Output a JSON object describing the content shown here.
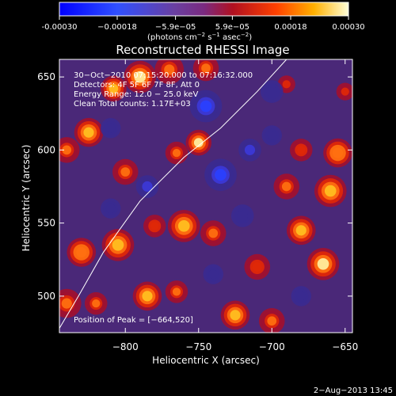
{
  "chart_data": {
    "type": "heatmap",
    "title": "Reconstructed RHESSI Image",
    "xlabel": "Heliocentric X (arcsec)",
    "ylabel": "Heliocentric Y (arcsec)",
    "xlim": [
      -845,
      -645
    ],
    "ylim": [
      475,
      662
    ],
    "x_ticks": [
      -800,
      -750,
      -700,
      -650
    ],
    "x_tick_labels": [
      "−800",
      "−750",
      "−700",
      "−650"
    ],
    "y_ticks": [
      500,
      550,
      600,
      650
    ],
    "y_tick_labels": [
      "500",
      "550",
      "600",
      "650"
    ],
    "colorbar": {
      "range": [
        -0.0003,
        0.0003
      ],
      "ticks": [
        -0.0003,
        -0.00018,
        -5.9e-05,
        5.9e-05,
        0.00018,
        0.0003
      ],
      "tick_labels": [
        "-0.00030",
        "−0.00018",
        "−5.9e−05",
        "5.9e−05",
        "0.00018",
        "0.00030"
      ],
      "units_prefix": "(photons cm",
      "units_exp1": "−2",
      "units_mid": " s",
      "units_exp2": "−1",
      "units_mid2": " asec",
      "units_exp3": "−2",
      "units_suffix": ")"
    },
    "annotations": [
      "30−Oct−2010 07:15:20.000 to 07:16:32.000",
      "Detectors: 4F 5F 6F 7F 8F, Att 0",
      "Energy Range: 12.0 − 25.0 keV",
      "Clean     Total counts: 1.17E+03"
    ],
    "peak_label": "Position of Peak = [−664,520]",
    "peak_position": [
      -664,
      520
    ],
    "limb_curve": [
      [
        -845,
        478
      ],
      [
        -832,
        500
      ],
      [
        -815,
        530
      ],
      [
        -790,
        565
      ],
      [
        -760,
        595
      ],
      [
        -735,
        615
      ],
      [
        -710,
        640
      ],
      [
        -690,
        662
      ]
    ],
    "blobs": [
      {
        "x": -790,
        "y": 650,
        "v": 1.0,
        "r": 10
      },
      {
        "x": -808,
        "y": 642,
        "v": 0.8,
        "r": 8
      },
      {
        "x": -770,
        "y": 655,
        "v": 0.7,
        "r": 9
      },
      {
        "x": -745,
        "y": 656,
        "v": 0.6,
        "r": 8
      },
      {
        "x": -825,
        "y": 612,
        "v": 0.85,
        "r": 9
      },
      {
        "x": -840,
        "y": 600,
        "v": 0.7,
        "r": 8
      },
      {
        "x": -800,
        "y": 585,
        "v": 0.6,
        "r": 8
      },
      {
        "x": -750,
        "y": 605,
        "v": 0.95,
        "r": 8
      },
      {
        "x": -765,
        "y": 598,
        "v": 0.6,
        "r": 7
      },
      {
        "x": -760,
        "y": 548,
        "v": 0.8,
        "r": 10
      },
      {
        "x": -740,
        "y": 543,
        "v": 0.7,
        "r": 8
      },
      {
        "x": -780,
        "y": 548,
        "v": 0.55,
        "r": 7
      },
      {
        "x": -805,
        "y": 535,
        "v": 0.9,
        "r": 10
      },
      {
        "x": -830,
        "y": 530,
        "v": 0.75,
        "r": 9
      },
      {
        "x": -840,
        "y": 495,
        "v": 0.7,
        "r": 9
      },
      {
        "x": -820,
        "y": 495,
        "v": 0.6,
        "r": 7
      },
      {
        "x": -785,
        "y": 500,
        "v": 0.85,
        "r": 9
      },
      {
        "x": -765,
        "y": 503,
        "v": 0.6,
        "r": 7
      },
      {
        "x": -725,
        "y": 487,
        "v": 0.85,
        "r": 9
      },
      {
        "x": -700,
        "y": 483,
        "v": 0.6,
        "r": 8
      },
      {
        "x": -665,
        "y": 522,
        "v": 1.0,
        "r": 10
      },
      {
        "x": -680,
        "y": 545,
        "v": 0.8,
        "r": 9
      },
      {
        "x": -660,
        "y": 572,
        "v": 0.9,
        "r": 10
      },
      {
        "x": -690,
        "y": 575,
        "v": 0.7,
        "r": 8
      },
      {
        "x": -655,
        "y": 598,
        "v": 0.75,
        "r": 9
      },
      {
        "x": -680,
        "y": 600,
        "v": 0.5,
        "r": 7
      },
      {
        "x": -710,
        "y": 520,
        "v": 0.5,
        "r": 8
      },
      {
        "x": -690,
        "y": 645,
        "v": 0.4,
        "r": 7
      },
      {
        "x": -650,
        "y": 640,
        "v": 0.45,
        "r": 7
      },
      {
        "x": -735,
        "y": 583,
        "v": -0.6,
        "r": 10
      },
      {
        "x": -745,
        "y": 630,
        "v": -0.55,
        "r": 10
      },
      {
        "x": -715,
        "y": 600,
        "v": -0.45,
        "r": 9
      },
      {
        "x": -785,
        "y": 575,
        "v": -0.45,
        "r": 9
      },
      {
        "x": -720,
        "y": 555,
        "v": -0.4,
        "r": 9
      },
      {
        "x": -810,
        "y": 560,
        "v": -0.35,
        "r": 8
      },
      {
        "x": -700,
        "y": 640,
        "v": -0.4,
        "r": 9
      },
      {
        "x": -740,
        "y": 515,
        "v": -0.35,
        "r": 8
      },
      {
        "x": -810,
        "y": 615,
        "v": -0.3,
        "r": 8
      },
      {
        "x": -680,
        "y": 500,
        "v": -0.3,
        "r": 8
      },
      {
        "x": -700,
        "y": 610,
        "v": -0.35,
        "r": 8
      }
    ]
  },
  "footer_date": "2−Aug−2013 13:45"
}
